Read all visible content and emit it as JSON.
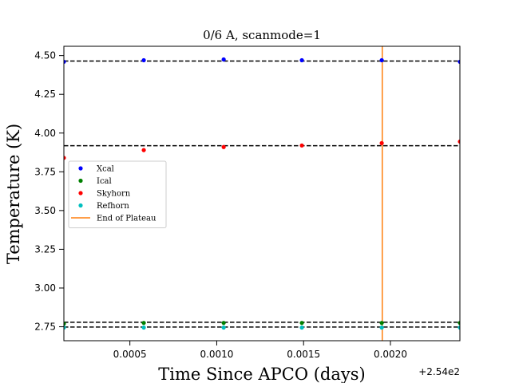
{
  "chart_data": {
    "type": "scatter",
    "title": "0/6 A, scanmode=1",
    "xlabel": "Time Since APCO (days)",
    "ylabel": "Temperature (K)",
    "x_offset_label": "+2.54e2",
    "xlim": [
      254.00012,
      254.0024
    ],
    "ylim": [
      2.66,
      4.56
    ],
    "x_ticks": [
      254.0005,
      254.001,
      254.0015,
      254.002
    ],
    "x_tick_labels": [
      "0.0005",
      "0.0010",
      "0.0015",
      "0.0020"
    ],
    "y_ticks": [
      2.75,
      3.0,
      3.25,
      3.5,
      3.75,
      4.0,
      4.25,
      4.5
    ],
    "y_tick_labels": [
      "2.75",
      "3.00",
      "3.25",
      "3.50",
      "3.75",
      "4.00",
      "4.25",
      "4.50"
    ],
    "x": [
      254.00012,
      254.00058,
      254.00104,
      254.00149,
      254.00195,
      254.0024
    ],
    "series": [
      {
        "name": "Xcal",
        "color": "#0000ff",
        "values": [
          4.46,
          4.47,
          4.475,
          4.47,
          4.47,
          4.46
        ]
      },
      {
        "name": "Ical",
        "color": "#008000",
        "values": [
          2.77,
          2.775,
          2.775,
          2.775,
          2.775,
          2.775
        ]
      },
      {
        "name": "Skyhorn",
        "color": "#ff0000",
        "values": [
          3.84,
          3.89,
          3.91,
          3.92,
          3.935,
          3.945
        ]
      },
      {
        "name": "Refhorn",
        "color": "#00bfbf",
        "values": [
          2.745,
          2.745,
          2.745,
          2.745,
          2.745,
          2.745
        ]
      }
    ],
    "hlines": [
      4.465,
      3.918,
      2.779,
      2.748
    ],
    "vline": {
      "name": "End of Plateau",
      "x": 254.001953,
      "color": "#ff7f0e"
    },
    "legend_placement": "center-left",
    "grid": false
  }
}
